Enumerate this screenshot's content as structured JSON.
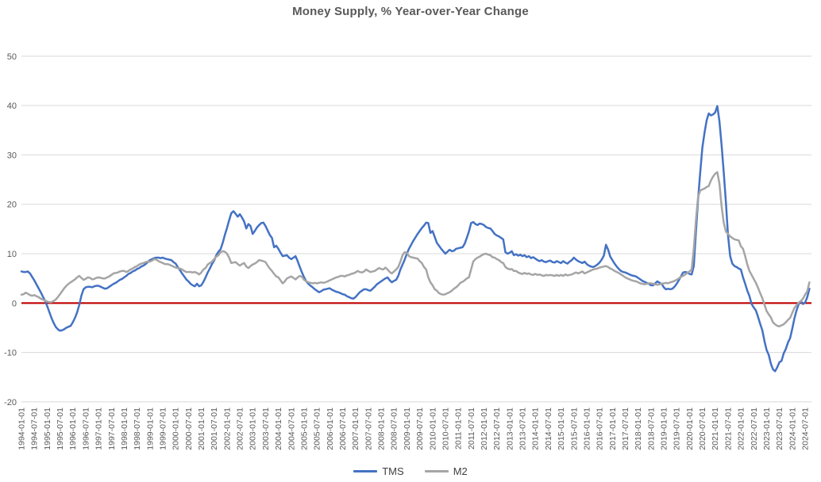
{
  "chart_data": {
    "type": "line",
    "title": "Money Supply, % Year-over-Year Change",
    "xlabel": "",
    "ylabel": "",
    "ylim": [
      -20,
      50
    ],
    "y_ticks": [
      50,
      40,
      30,
      20,
      10,
      0,
      -10,
      -20
    ],
    "grid": true,
    "zero_line_color": "#C00000",
    "grid_color": "#D9D9D9",
    "legend_position": "bottom",
    "x_start": "1994-01",
    "x_step_months": 1,
    "x_tick_step_months": 6,
    "x_tick_labels": [
      "1994-01-01",
      "1994-07-01",
      "1995-01-01",
      "1995-07-01",
      "1996-01-01",
      "1996-07-01",
      "1997-01-01",
      "1997-07-01",
      "1998-01-01",
      "1998-07-01",
      "1999-01-01",
      "1999-07-01",
      "2000-01-01",
      "2000-07-01",
      "2001-01-01",
      "2001-07-01",
      "2002-01-01",
      "2002-07-01",
      "2003-01-01",
      "2003-07-01",
      "2004-01-01",
      "2004-07-01",
      "2005-01-01",
      "2005-07-01",
      "2006-01-01",
      "2006-07-01",
      "2007-01-01",
      "2007-07-01",
      "2008-01-01",
      "2008-07-01",
      "2009-01-01",
      "2009-07-01",
      "2010-01-01",
      "2010-07-01",
      "2011-01-01",
      "2011-07-01",
      "2012-01-01",
      "2012-07-01",
      "2013-01-01",
      "2013-07-01",
      "2014-01-01",
      "2014-07-01",
      "2015-01-01",
      "2015-07-01",
      "2016-01-01",
      "2016-07-01",
      "2017-01-01",
      "2017-07-01",
      "2018-01-01",
      "2018-07-01",
      "2019-01-01",
      "2019-07-01",
      "2020-01-01",
      "2020-07-01",
      "2021-01-01",
      "2021-07-01",
      "2022-01-01",
      "2022-07-01",
      "2023-01-01",
      "2023-07-01",
      "2024-01-01",
      "2024-07-01"
    ],
    "legend": [
      {
        "label": "TMS",
        "color": "#4472C4"
      },
      {
        "label": "M2",
        "color": "#A5A5A5"
      }
    ],
    "series": [
      {
        "name": "TMS",
        "color": "#4472C4",
        "values": [
          6.4,
          6.3,
          6.3,
          6.4,
          6.0,
          5.3,
          4.6,
          3.8,
          3.0,
          2.2,
          1.3,
          0.5,
          -0.6,
          -1.8,
          -3.0,
          -4.0,
          -4.8,
          -5.3,
          -5.6,
          -5.5,
          -5.3,
          -5.0,
          -4.8,
          -4.6,
          -3.9,
          -3.0,
          -1.9,
          -0.4,
          1.5,
          2.8,
          3.2,
          3.3,
          3.3,
          3.2,
          3.4,
          3.5,
          3.5,
          3.3,
          3.1,
          2.9,
          3.0,
          3.3,
          3.6,
          3.9,
          4.1,
          4.4,
          4.7,
          4.9,
          5.2,
          5.5,
          5.9,
          6.1,
          6.4,
          6.6,
          6.9,
          7.1,
          7.4,
          7.6,
          7.9,
          8.3,
          8.7,
          8.9,
          9.1,
          9.2,
          9.2,
          9.1,
          9.2,
          9.0,
          8.9,
          8.8,
          8.7,
          8.3,
          8.0,
          7.3,
          6.7,
          6.0,
          5.4,
          4.8,
          4.4,
          3.9,
          3.6,
          3.4,
          3.9,
          3.4,
          3.6,
          4.3,
          5.2,
          6.2,
          7.0,
          7.9,
          8.6,
          9.7,
          10.4,
          10.9,
          12.2,
          13.8,
          15.2,
          16.8,
          18.2,
          18.6,
          18.1,
          17.5,
          18.0,
          17.3,
          16.5,
          15.1,
          16.0,
          15.6,
          14.0,
          14.6,
          15.3,
          15.8,
          16.2,
          16.3,
          15.6,
          14.7,
          13.8,
          13.2,
          11.3,
          11.6,
          11.0,
          10.2,
          9.5,
          9.6,
          9.7,
          9.2,
          8.9,
          9.2,
          9.5,
          8.5,
          7.3,
          6.2,
          5.2,
          4.4,
          3.9,
          3.5,
          3.2,
          2.8,
          2.5,
          2.2,
          2.4,
          2.7,
          2.8,
          2.9,
          3.0,
          2.7,
          2.5,
          2.3,
          2.2,
          2.0,
          1.8,
          1.7,
          1.4,
          1.2,
          1.0,
          0.9,
          1.2,
          1.7,
          2.2,
          2.5,
          2.8,
          2.8,
          2.6,
          2.5,
          2.9,
          3.3,
          3.8,
          4.1,
          4.4,
          4.7,
          5.0,
          5.2,
          4.6,
          4.2,
          4.5,
          4.7,
          5.5,
          6.8,
          7.8,
          8.8,
          10.0,
          11.0,
          11.8,
          12.6,
          13.3,
          14.0,
          14.6,
          15.2,
          15.7,
          16.3,
          16.2,
          14.2,
          14.6,
          13.4,
          12.2,
          11.6,
          11.0,
          10.5,
          10.0,
          10.4,
          10.8,
          10.5,
          10.6,
          11.0,
          11.1,
          11.2,
          11.3,
          12.0,
          13.2,
          14.5,
          16.2,
          16.4,
          16.0,
          15.8,
          16.1,
          16.0,
          15.8,
          15.4,
          15.2,
          15.1,
          14.6,
          14.0,
          13.7,
          13.5,
          13.2,
          12.9,
          10.3,
          10.0,
          10.2,
          10.5,
          9.7,
          9.9,
          9.6,
          9.8,
          9.5,
          9.7,
          9.3,
          9.5,
          9.1,
          9.3,
          9.0,
          8.7,
          8.5,
          8.7,
          8.4,
          8.3,
          8.5,
          8.6,
          8.3,
          8.2,
          8.5,
          8.3,
          8.1,
          8.5,
          8.2,
          8.0,
          8.4,
          8.7,
          9.2,
          8.8,
          8.5,
          8.3,
          8.1,
          8.4,
          7.9,
          7.6,
          7.4,
          7.3,
          7.5,
          7.8,
          8.2,
          8.8,
          9.6,
          11.8,
          10.8,
          9.4,
          8.7,
          8.0,
          7.4,
          6.9,
          6.5,
          6.3,
          6.2,
          6.0,
          5.8,
          5.6,
          5.5,
          5.4,
          5.1,
          4.8,
          4.5,
          4.3,
          4.1,
          3.9,
          3.6,
          3.6,
          4.0,
          4.4,
          4.1,
          3.9,
          3.2,
          2.8,
          2.9,
          2.8,
          2.9,
          3.3,
          3.9,
          4.6,
          5.4,
          6.2,
          6.3,
          6.2,
          5.9,
          5.8,
          7.5,
          14.5,
          21.0,
          26.5,
          31.5,
          34.5,
          37.0,
          38.4,
          38.0,
          38.2,
          38.6,
          39.9,
          36.8,
          32.0,
          26.5,
          20.5,
          13.7,
          9.5,
          8.0,
          7.5,
          7.3,
          7.0,
          6.8,
          5.2,
          3.9,
          2.5,
          1.4,
          -0.2,
          -0.9,
          -1.5,
          -2.8,
          -4.2,
          -5.5,
          -7.7,
          -9.5,
          -10.5,
          -12.3,
          -13.4,
          -13.8,
          -13.0,
          -12.0,
          -11.7,
          -10.2,
          -9.3,
          -8.0,
          -7.1,
          -5.2,
          -3.1,
          -1.5,
          -0.2,
          0.4,
          -0.2,
          0.1,
          1.2,
          2.9
        ]
      },
      {
        "name": "M2",
        "color": "#A5A5A5",
        "values": [
          1.7,
          1.8,
          2.1,
          1.9,
          1.6,
          1.5,
          1.6,
          1.4,
          1.2,
          0.9,
          0.7,
          0.5,
          0.3,
          0.2,
          0.2,
          0.4,
          0.7,
          1.2,
          1.8,
          2.4,
          3.0,
          3.5,
          3.9,
          4.2,
          4.5,
          4.8,
          5.2,
          5.5,
          5.1,
          4.7,
          4.9,
          5.2,
          5.1,
          4.8,
          4.9,
          5.1,
          5.2,
          5.1,
          5.0,
          5.0,
          5.2,
          5.4,
          5.7,
          6.0,
          6.1,
          6.2,
          6.4,
          6.5,
          6.5,
          6.3,
          6.5,
          6.8,
          7.0,
          7.3,
          7.5,
          7.8,
          8.0,
          8.1,
          8.3,
          8.4,
          8.4,
          8.6,
          8.9,
          8.8,
          8.5,
          8.3,
          8.1,
          7.9,
          7.9,
          7.8,
          7.6,
          7.4,
          7.2,
          7.1,
          7.0,
          6.8,
          6.5,
          6.3,
          6.3,
          6.3,
          6.2,
          6.3,
          6.1,
          5.8,
          6.2,
          6.8,
          7.1,
          7.8,
          8.1,
          8.4,
          8.9,
          9.4,
          9.7,
          10.3,
          10.5,
          10.4,
          10.0,
          9.2,
          8.1,
          8.2,
          8.3,
          7.9,
          7.6,
          7.9,
          8.1,
          7.4,
          7.1,
          7.5,
          7.8,
          8.0,
          8.3,
          8.7,
          8.6,
          8.5,
          8.3,
          7.6,
          7.0,
          6.5,
          5.9,
          5.4,
          5.2,
          4.6,
          4.0,
          4.4,
          5.0,
          5.2,
          5.4,
          5.1,
          4.8,
          5.2,
          5.5,
          5.3,
          4.7,
          4.4,
          4.2,
          4.1,
          4.0,
          4.1,
          4.0,
          4.1,
          4.2,
          4.1,
          4.2,
          4.4,
          4.6,
          4.8,
          5.0,
          5.2,
          5.3,
          5.5,
          5.5,
          5.4,
          5.6,
          5.7,
          5.9,
          6.0,
          6.2,
          6.5,
          6.3,
          6.2,
          6.4,
          6.8,
          6.5,
          6.3,
          6.4,
          6.5,
          6.8,
          7.1,
          6.9,
          6.8,
          7.2,
          6.8,
          6.3,
          6.0,
          6.4,
          6.8,
          7.3,
          8.4,
          9.7,
          10.3,
          10.2,
          9.5,
          9.3,
          9.2,
          9.1,
          9.0,
          8.5,
          8.1,
          7.3,
          6.8,
          5.2,
          4.2,
          3.6,
          2.8,
          2.5,
          2.0,
          1.8,
          1.7,
          1.8,
          2.0,
          2.2,
          2.5,
          2.9,
          3.2,
          3.6,
          4.1,
          4.3,
          4.6,
          5.0,
          5.2,
          6.8,
          8.4,
          8.9,
          9.2,
          9.4,
          9.7,
          9.9,
          10.0,
          9.8,
          9.7,
          9.3,
          9.2,
          8.9,
          8.7,
          8.3,
          8.1,
          7.3,
          7.0,
          6.8,
          6.9,
          6.5,
          6.5,
          6.2,
          6.0,
          5.9,
          6.1,
          5.9,
          6.0,
          5.8,
          5.7,
          5.9,
          5.7,
          5.8,
          5.6,
          5.5,
          5.7,
          5.6,
          5.7,
          5.6,
          5.5,
          5.7,
          5.5,
          5.7,
          5.5,
          5.8,
          5.6,
          5.7,
          5.8,
          6.0,
          6.2,
          6.0,
          6.2,
          6.4,
          6.0,
          6.2,
          6.4,
          6.6,
          6.8,
          6.9,
          7.0,
          7.2,
          7.3,
          7.4,
          7.5,
          7.3,
          7.0,
          6.8,
          6.5,
          6.3,
          6.1,
          5.8,
          5.5,
          5.2,
          5.0,
          4.8,
          4.6,
          4.5,
          4.4,
          4.2,
          4.0,
          3.9,
          3.8,
          3.9,
          4.0,
          4.0,
          3.9,
          3.8,
          3.7,
          3.8,
          3.9,
          4.0,
          4.1,
          4.0,
          4.2,
          4.3,
          4.5,
          4.7,
          5.0,
          5.3,
          5.5,
          5.8,
          6.1,
          6.4,
          6.8,
          11.0,
          16.8,
          21.5,
          22.8,
          23.0,
          23.2,
          23.5,
          23.7,
          24.8,
          25.6,
          26.2,
          26.5,
          24.2,
          19.6,
          16.3,
          14.5,
          14.0,
          13.5,
          13.2,
          12.9,
          12.8,
          12.7,
          11.5,
          11.0,
          9.5,
          7.8,
          6.5,
          5.7,
          4.9,
          4.1,
          3.1,
          2.0,
          1.0,
          -0.3,
          -1.6,
          -2.3,
          -2.9,
          -3.9,
          -4.3,
          -4.6,
          -4.7,
          -4.5,
          -4.3,
          -3.9,
          -3.4,
          -3.0,
          -2.0,
          -1.0,
          -0.4,
          0.1,
          0.4,
          0.9,
          1.7,
          2.4,
          4.2
        ]
      }
    ]
  }
}
